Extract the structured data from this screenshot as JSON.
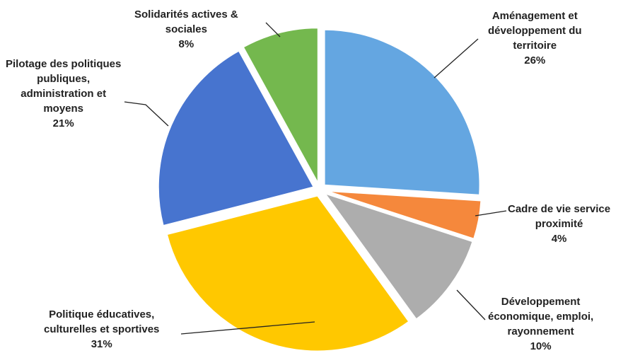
{
  "chart_data": {
    "type": "pie",
    "slices": [
      {
        "label_lines": [
          "Aménagement et",
          "développement du",
          "territoire"
        ],
        "value": 26,
        "value_text": "26%",
        "color": "#64A6E1"
      },
      {
        "label_lines": [
          "Cadre de vie service",
          "proximité"
        ],
        "value": 4,
        "value_text": "4%",
        "color": "#F5883C"
      },
      {
        "label_lines": [
          "Développement",
          "économique, emploi,",
          "rayonnement"
        ],
        "value": 10,
        "value_text": "10%",
        "color": "#ADADAD"
      },
      {
        "label_lines": [
          "Politique éducatives,",
          "culturelles et sportives"
        ],
        "value": 31,
        "value_text": "31%",
        "color": "#FFC800"
      },
      {
        "label_lines": [
          "Pilotage des politiques",
          "publiques,",
          "administration et",
          "moyens"
        ],
        "value": 21,
        "value_text": "21%",
        "color": "#4774CF"
      },
      {
        "label_lines": [
          "Solidarités actives &",
          "sociales"
        ],
        "value": 8,
        "value_text": "8%",
        "color": "#74B84E"
      }
    ],
    "legend": "none",
    "labels": "outside with leader lines"
  }
}
